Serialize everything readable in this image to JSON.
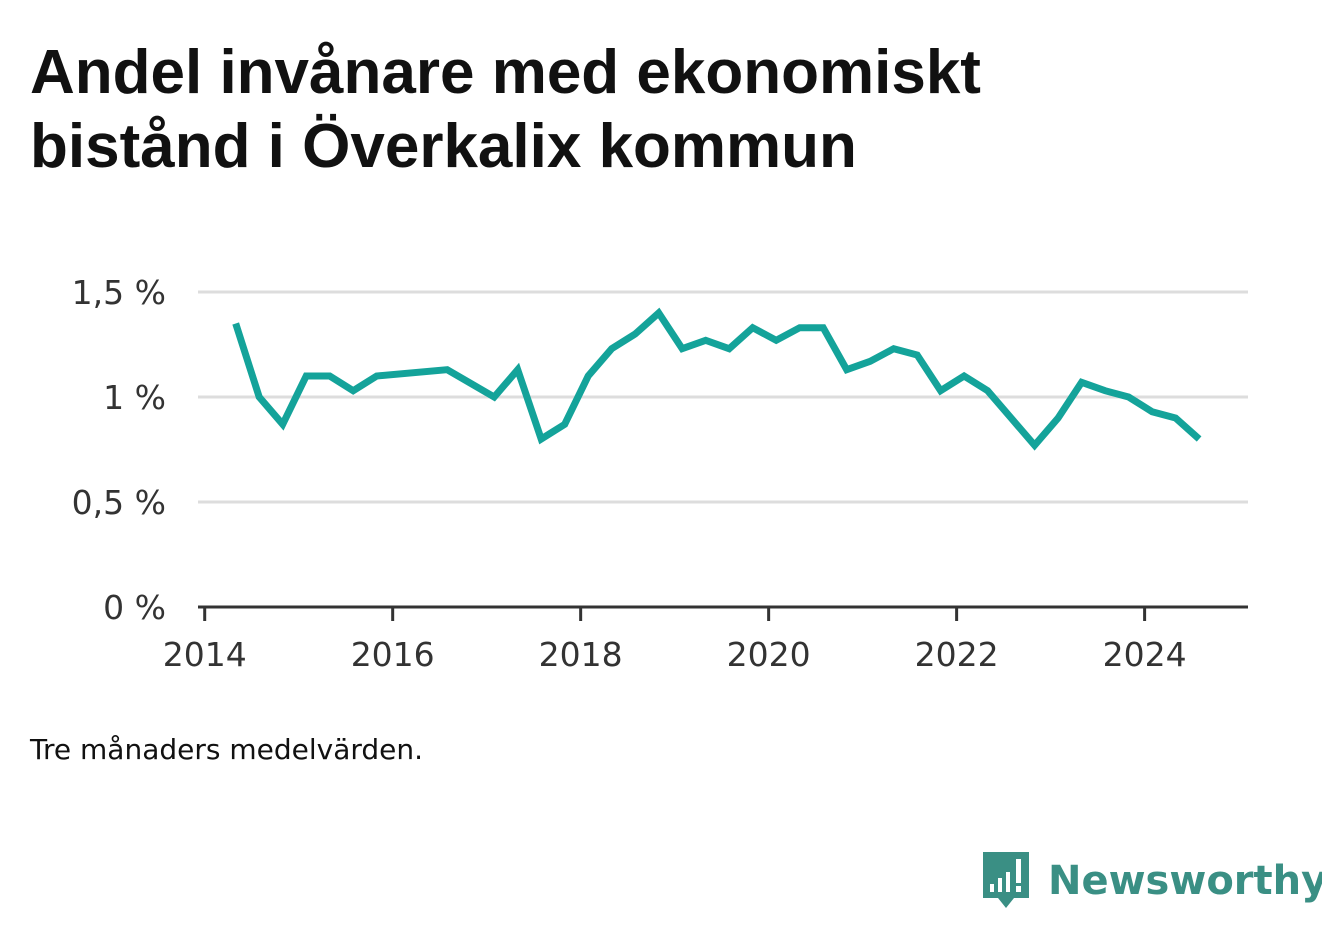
{
  "title_line1": "Andel invånare med ekonomiskt",
  "title_line2": "bistånd i Överkalix kommun",
  "note": "Tre månaders medelvärden.",
  "brand": "Newsworthy",
  "colors": {
    "line": "#14a39a",
    "grid": "#dddddd",
    "axis": "#333333",
    "brand": "#3a8f84"
  },
  "chart_data": {
    "type": "line",
    "title": "Andel invånare med ekonomiskt bistånd i Överkalix kommun",
    "xlabel": "",
    "ylabel": "",
    "xlim": [
      2013.95,
      2025.1
    ],
    "ylim": [
      0,
      1.5
    ],
    "y_ticks": [
      {
        "value": 0,
        "label": "0 %"
      },
      {
        "value": 0.5,
        "label": "0,5 %"
      },
      {
        "value": 1,
        "label": "1 %"
      },
      {
        "value": 1.5,
        "label": "1,5 %"
      }
    ],
    "x_ticks": [
      {
        "value": 2014,
        "label": "2014"
      },
      {
        "value": 2016,
        "label": "2016"
      },
      {
        "value": 2018,
        "label": "2018"
      },
      {
        "value": 2020,
        "label": "2020"
      },
      {
        "value": 2022,
        "label": "2022"
      },
      {
        "value": 2024,
        "label": "2024"
      }
    ],
    "grid": true,
    "series": [
      {
        "name": "",
        "x": [
          2014.33,
          2014.58,
          2014.83,
          2015.08,
          2015.33,
          2015.58,
          2015.83,
          2016.58,
          2017.08,
          2017.33,
          2017.58,
          2017.83,
          2018.08,
          2018.33,
          2018.58,
          2018.83,
          2019.08,
          2019.33,
          2019.58,
          2019.83,
          2020.08,
          2020.33,
          2020.58,
          2020.83,
          2021.08,
          2021.33,
          2021.58,
          2021.83,
          2022.08,
          2022.33,
          2022.58,
          2022.83,
          2023.08,
          2023.33,
          2023.58,
          2023.83,
          2024.08,
          2024.33,
          2024.58
        ],
        "y": [
          1.35,
          1.0,
          0.87,
          1.1,
          1.1,
          1.03,
          1.1,
          1.13,
          1.0,
          1.13,
          0.8,
          0.87,
          1.1,
          1.23,
          1.3,
          1.4,
          1.23,
          1.27,
          1.23,
          1.33,
          1.27,
          1.33,
          1.33,
          1.13,
          1.17,
          1.23,
          1.2,
          1.03,
          1.1,
          1.03,
          0.9,
          0.77,
          0.9,
          1.07,
          1.03,
          1.0,
          0.93,
          0.9,
          0.8
        ]
      }
    ]
  }
}
